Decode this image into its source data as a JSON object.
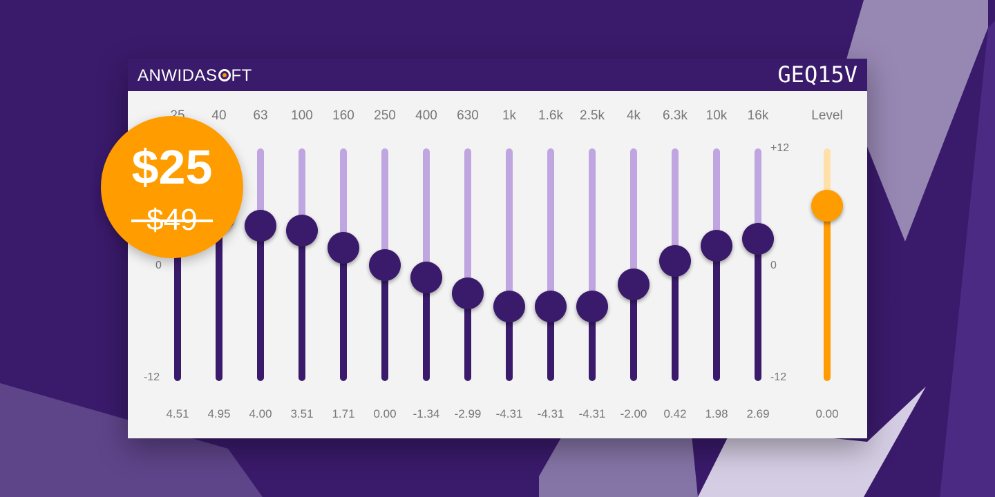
{
  "brand": {
    "prefix": "ANWIDAS",
    "suffix": "FT"
  },
  "product": "GEQ15V",
  "price": {
    "current": "$25",
    "original": "$49"
  },
  "scale": {
    "max_label": "+12",
    "zero_label": "0",
    "min_label": "-12",
    "max": 12,
    "min": -12
  },
  "bands": [
    {
      "freq": "25",
      "gain": 4.51,
      "gain_label": "4.51"
    },
    {
      "freq": "40",
      "gain": 4.95,
      "gain_label": "4.95"
    },
    {
      "freq": "63",
      "gain": 4.0,
      "gain_label": "4.00"
    },
    {
      "freq": "100",
      "gain": 3.51,
      "gain_label": "3.51"
    },
    {
      "freq": "160",
      "gain": 1.71,
      "gain_label": "1.71"
    },
    {
      "freq": "250",
      "gain": 0.0,
      "gain_label": "0.00"
    },
    {
      "freq": "400",
      "gain": -1.34,
      "gain_label": "-1.34"
    },
    {
      "freq": "630",
      "gain": -2.99,
      "gain_label": "-2.99"
    },
    {
      "freq": "1k",
      "gain": -4.31,
      "gain_label": "-4.31"
    },
    {
      "freq": "1.6k",
      "gain": -4.31,
      "gain_label": "-4.31"
    },
    {
      "freq": "2.5k",
      "gain": -4.31,
      "gain_label": "-4.31"
    },
    {
      "freq": "4k",
      "gain": -2.0,
      "gain_label": "-2.00"
    },
    {
      "freq": "6.3k",
      "gain": 0.42,
      "gain_label": "0.42"
    },
    {
      "freq": "10k",
      "gain": 1.98,
      "gain_label": "1.98"
    },
    {
      "freq": "16k",
      "gain": 2.69,
      "gain_label": "2.69"
    }
  ],
  "level": {
    "label": "Level",
    "gain": 0.0,
    "gain_label": "0.00"
  },
  "colors": {
    "background": "#3a1a6b",
    "knob": "#3a1a6b",
    "track_active": "#3a1a6b",
    "track_inactive": "#bfa6e0",
    "level_active": "#ff9c00",
    "level_inactive": "#ffe0a8",
    "badge": "#ff9c00"
  }
}
